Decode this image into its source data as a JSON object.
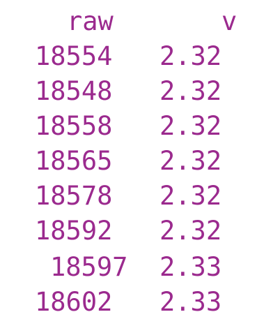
{
  "table": {
    "headers": [
      "raw",
      "v"
    ],
    "rows": [
      {
        "raw": "18554",
        "v": "2.32"
      },
      {
        "raw": "18548",
        "v": "2.32"
      },
      {
        "raw": "18558",
        "v": "2.32"
      },
      {
        "raw": "18565",
        "v": "2.32"
      },
      {
        "raw": "18578",
        "v": "2.32"
      },
      {
        "raw": "18592",
        "v": "2.32"
      },
      {
        "raw": "18597",
        "v": "2.33"
      },
      {
        "raw": "18602",
        "v": "2.33"
      }
    ]
  },
  "colors": {
    "text": "#9b2a8e",
    "background": "#ffffff"
  }
}
